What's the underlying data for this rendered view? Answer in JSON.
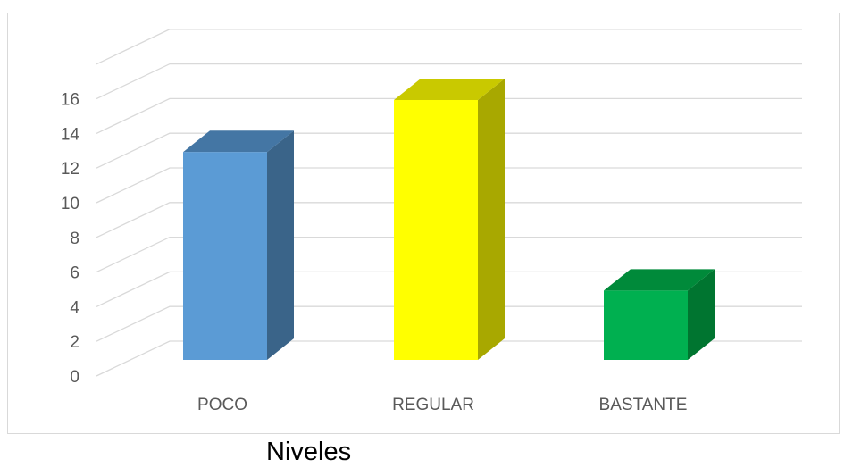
{
  "chart_data": {
    "type": "bar",
    "style": "3d-column",
    "categories": [
      "POCO",
      "REGULAR",
      "BASTANTE"
    ],
    "values": [
      12,
      15,
      4
    ],
    "colors": [
      "#5b9bd5",
      "#ffff00",
      "#00b050"
    ],
    "side_colors": [
      "#3a6489",
      "#a8a800",
      "#007530"
    ],
    "top_colors": [
      "#4476a4",
      "#c9c900",
      "#008a3a"
    ],
    "ylim": [
      0,
      18
    ],
    "yticks": [
      0,
      2,
      4,
      6,
      8,
      10,
      12,
      14,
      16
    ],
    "grid": true,
    "xlabel": "",
    "ylabel": ""
  },
  "caption": "Niveles"
}
